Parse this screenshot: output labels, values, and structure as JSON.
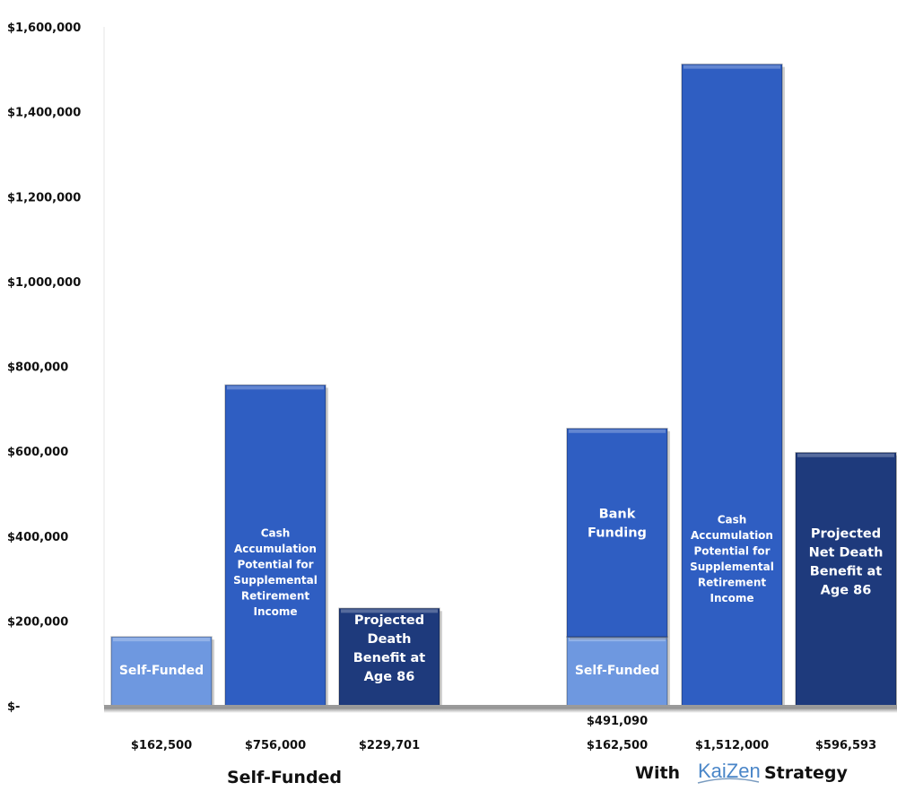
{
  "chart_data": {
    "type": "bar",
    "ylim": [
      0,
      1600000
    ],
    "yticks": [
      "$-",
      "$200,000",
      "$400,000",
      "$600,000",
      "$800,000",
      "$1,000,000",
      "$1,200,000",
      "$1,400,000",
      "$1,600,000"
    ],
    "grid": false,
    "colors": {
      "self_funded": "#6e98e0",
      "cash": "#2f5ec2",
      "death": "#1e3a7c",
      "bank": "#2f5ec2"
    },
    "groups": [
      {
        "label": "Self-Funded",
        "bars": [
          {
            "segments": [
              {
                "value": 162500,
                "label": [
                  "Self-Funded"
                ],
                "color": "self_funded"
              }
            ],
            "value_labels": [
              "$162,500"
            ]
          },
          {
            "segments": [
              {
                "value": 756000,
                "label": [
                  "Cash",
                  "Accumulation",
                  "Potential for",
                  "Supplemental",
                  "Retirement",
                  "Income"
                ],
                "color": "cash"
              }
            ],
            "value_labels": [
              "$756,000"
            ]
          },
          {
            "segments": [
              {
                "value": 229701,
                "label": [
                  "Projected",
                  "Death",
                  "Benefit at",
                  "Age 86"
                ],
                "color": "death"
              }
            ],
            "value_labels": [
              "$229,701"
            ]
          }
        ]
      },
      {
        "label_prefix": "With",
        "logo": "KaiZen",
        "label_suffix": "Strategy",
        "bars": [
          {
            "segments": [
              {
                "value": 162500,
                "label": [
                  "Self-Funded"
                ],
                "color": "self_funded"
              },
              {
                "value": 491090,
                "label": [
                  "Bank",
                  "Funding"
                ],
                "color": "bank"
              }
            ],
            "value_labels": [
              "$491,090",
              "$162,500"
            ]
          },
          {
            "segments": [
              {
                "value": 1512000,
                "label": [
                  "Cash",
                  "Accumulation",
                  "Potential for",
                  "Supplemental",
                  "Retirement",
                  "Income"
                ],
                "color": "cash"
              }
            ],
            "value_labels": [
              "$1,512,000"
            ]
          },
          {
            "segments": [
              {
                "value": 596593,
                "label": [
                  "Projected",
                  "Net Death",
                  "Benefit at",
                  "Age 86"
                ],
                "color": "death"
              }
            ],
            "value_labels": [
              "$596,593"
            ]
          }
        ]
      }
    ]
  }
}
